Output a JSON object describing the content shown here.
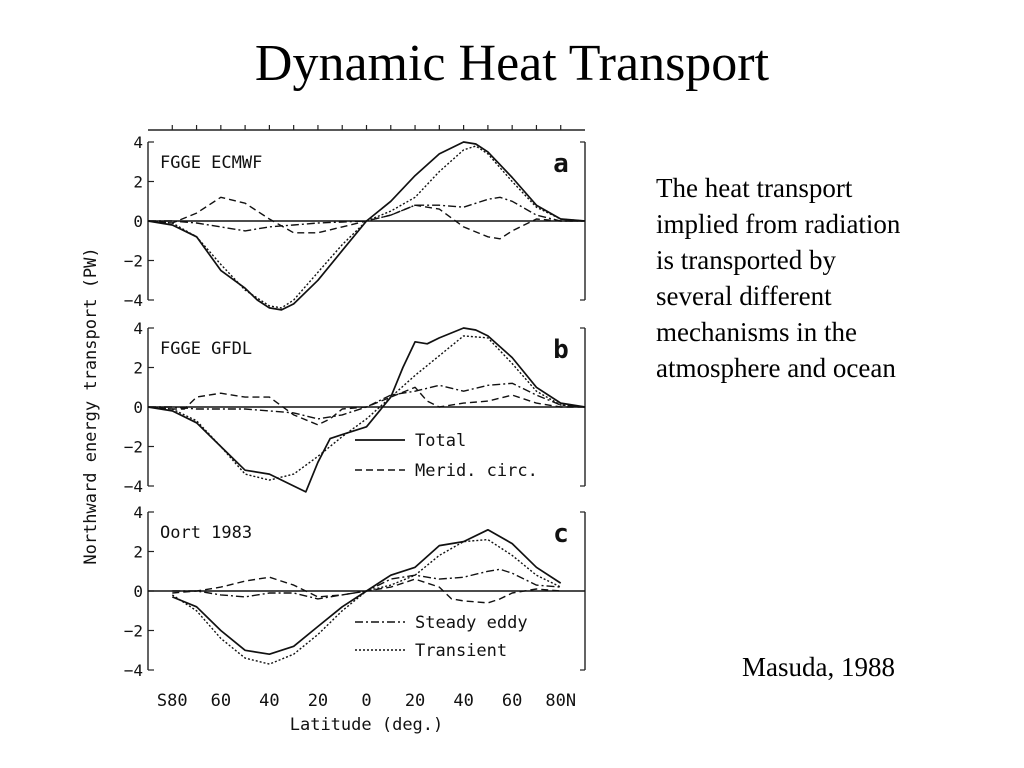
{
  "slide": {
    "title": "Dynamic Heat Transport",
    "description_lines": [
      "The heat transport",
      "implied from radiation",
      "is transported by",
      "several different",
      "mechanisms in the",
      "atmosphere and ocean"
    ],
    "credit": "Masuda, 1988"
  },
  "chart_data": {
    "type": "line",
    "ylabel": "Northward energy transport (PW)",
    "xlabel": "Latitude (deg.)",
    "xlim": [
      -90,
      90
    ],
    "ylim": [
      -4,
      4
    ],
    "x_tick_labels": [
      "S80",
      "60",
      "40",
      "20",
      "0",
      "20",
      "40",
      "60",
      "80N"
    ],
    "x_tick_values": [
      -80,
      -60,
      -40,
      -20,
      0,
      20,
      40,
      60,
      80
    ],
    "y_ticks": [
      4,
      2,
      0,
      -2,
      -4
    ],
    "legend": [
      {
        "name": "Total",
        "style": "solid"
      },
      {
        "name": "Merid. circ.",
        "style": "dashed"
      },
      {
        "name": "Steady eddy",
        "style": "dashdot"
      },
      {
        "name": "Transient",
        "style": "dotted"
      }
    ],
    "panels": [
      {
        "label": "FGGE ECMWF",
        "letter": "a",
        "series": [
          {
            "name": "Total",
            "x": [
              -90,
              -80,
              -70,
              -60,
              -50,
              -45,
              -40,
              -35,
              -30,
              -20,
              -10,
              0,
              10,
              20,
              30,
              40,
              45,
              50,
              60,
              70,
              80,
              90
            ],
            "y": [
              0,
              -0.2,
              -0.8,
              -2.5,
              -3.4,
              -4,
              -4.4,
              -4.5,
              -4.2,
              -3,
              -1.5,
              0,
              1,
              2.3,
              3.4,
              4,
              3.9,
              3.5,
              2.2,
              0.8,
              0.1,
              0
            ]
          },
          {
            "name": "Merid. circ.",
            "x": [
              -90,
              -80,
              -70,
              -60,
              -50,
              -40,
              -30,
              -20,
              -10,
              0,
              10,
              20,
              30,
              40,
              50,
              55,
              60,
              70,
              80,
              90
            ],
            "y": [
              0,
              -0.1,
              0.4,
              1.2,
              0.9,
              0.1,
              -0.6,
              -0.6,
              -0.3,
              0,
              0.3,
              0.8,
              0.6,
              -0.3,
              -0.8,
              -0.9,
              -0.5,
              0.1,
              0,
              0
            ]
          },
          {
            "name": "Steady eddy",
            "x": [
              -90,
              -80,
              -70,
              -60,
              -50,
              -40,
              -30,
              -20,
              -10,
              0,
              10,
              20,
              30,
              40,
              50,
              55,
              60,
              70,
              80,
              90
            ],
            "y": [
              0,
              0,
              -0.1,
              -0.3,
              -0.5,
              -0.3,
              -0.2,
              -0.1,
              -0.05,
              0,
              0.3,
              0.8,
              0.8,
              0.7,
              1.1,
              1.2,
              1,
              0.3,
              0,
              0
            ]
          },
          {
            "name": "Transient",
            "x": [
              -90,
              -80,
              -70,
              -60,
              -50,
              -40,
              -35,
              -30,
              -20,
              -10,
              0,
              10,
              20,
              30,
              40,
              45,
              50,
              60,
              70,
              80,
              90
            ],
            "y": [
              0,
              -0.1,
              -0.8,
              -2.2,
              -3.5,
              -4.3,
              -4.4,
              -4,
              -2.6,
              -1.2,
              0,
              0.5,
              1.2,
              2.5,
              3.6,
              3.8,
              3.4,
              2,
              0.7,
              0.1,
              0
            ]
          }
        ]
      },
      {
        "label": "FGGE GFDL",
        "letter": "b",
        "series": [
          {
            "name": "Total",
            "x": [
              -90,
              -80,
              -70,
              -60,
              -50,
              -40,
              -30,
              -25,
              -20,
              -15,
              -10,
              0,
              10,
              15,
              20,
              25,
              30,
              40,
              45,
              50,
              60,
              70,
              80,
              90
            ],
            "y": [
              0,
              -0.2,
              -0.8,
              -2,
              -3.2,
              -3.4,
              -4,
              -4.3,
              -2.8,
              -1.6,
              -1.4,
              -1,
              0.5,
              2,
              3.3,
              3.2,
              3.5,
              4,
              3.9,
              3.6,
              2.5,
              1,
              0.2,
              0
            ]
          },
          {
            "name": "Merid. circ.",
            "x": [
              -90,
              -80,
              -75,
              -70,
              -60,
              -50,
              -40,
              -30,
              -20,
              -15,
              -10,
              0,
              10,
              20,
              25,
              30,
              40,
              50,
              60,
              70,
              80,
              90
            ],
            "y": [
              0,
              -0.1,
              -0.1,
              0.5,
              0.7,
              0.5,
              0.5,
              -0.4,
              -0.9,
              -0.6,
              -0.1,
              0,
              0.5,
              1,
              0.3,
              0,
              0.2,
              0.3,
              0.6,
              0.2,
              0,
              0
            ]
          },
          {
            "name": "Steady eddy",
            "x": [
              -90,
              -80,
              -70,
              -60,
              -50,
              -40,
              -30,
              -20,
              -10,
              0,
              10,
              20,
              30,
              40,
              50,
              60,
              70,
              80,
              90
            ],
            "y": [
              0,
              0,
              -0.1,
              -0.1,
              -0.1,
              -0.2,
              -0.3,
              -0.6,
              -0.4,
              0,
              0.6,
              0.8,
              1.1,
              0.8,
              1.1,
              1.2,
              0.6,
              0.1,
              0
            ]
          },
          {
            "name": "Transient",
            "x": [
              -90,
              -80,
              -70,
              -60,
              -50,
              -40,
              -30,
              -20,
              -10,
              0,
              10,
              20,
              30,
              40,
              50,
              60,
              70,
              80,
              90
            ],
            "y": [
              0,
              -0.1,
              -0.7,
              -2,
              -3.4,
              -3.7,
              -3.4,
              -2.5,
              -1.5,
              -0.6,
              0.5,
              1.6,
              2.6,
              3.6,
              3.5,
              2.2,
              0.8,
              0.1,
              0
            ]
          }
        ]
      },
      {
        "label": "Oort 1983",
        "letter": "c",
        "series": [
          {
            "name": "Total",
            "x": [
              -80,
              -70,
              -60,
              -50,
              -40,
              -30,
              -20,
              -10,
              0,
              10,
              20,
              30,
              40,
              50,
              60,
              70,
              80
            ],
            "y": [
              -0.3,
              -0.8,
              -2,
              -3,
              -3.2,
              -2.8,
              -1.8,
              -0.8,
              0,
              0.8,
              1.2,
              2.3,
              2.5,
              3.1,
              2.4,
              1.2,
              0.4
            ]
          },
          {
            "name": "Merid. circ.",
            "x": [
              -80,
              -70,
              -60,
              -50,
              -40,
              -30,
              -20,
              -10,
              0,
              10,
              20,
              30,
              35,
              40,
              50,
              55,
              60,
              70,
              80
            ],
            "y": [
              -0.1,
              0,
              0.2,
              0.5,
              0.7,
              0.3,
              -0.3,
              -0.2,
              0,
              0.2,
              0.6,
              0.2,
              -0.4,
              -0.5,
              -0.6,
              -0.4,
              -0.1,
              0.1,
              0
            ]
          },
          {
            "name": "Steady eddy",
            "x": [
              -80,
              -70,
              -60,
              -50,
              -40,
              -30,
              -20,
              -10,
              0,
              10,
              20,
              30,
              40,
              50,
              55,
              60,
              70,
              80
            ],
            "y": [
              0,
              0,
              -0.2,
              -0.3,
              -0.1,
              -0.1,
              -0.4,
              -0.2,
              0,
              0.6,
              0.8,
              0.6,
              0.7,
              1.0,
              1.1,
              0.9,
              0.3,
              0.2
            ]
          },
          {
            "name": "Transient",
            "x": [
              -80,
              -70,
              -60,
              -50,
              -40,
              -30,
              -20,
              -10,
              0,
              10,
              20,
              30,
              40,
              50,
              60,
              70,
              80
            ],
            "y": [
              -0.2,
              -1,
              -2.4,
              -3.4,
              -3.7,
              -3.2,
              -2.2,
              -1,
              0,
              0.3,
              0.8,
              1.8,
              2.5,
              2.6,
              1.8,
              0.8,
              0.2
            ]
          }
        ]
      }
    ]
  }
}
